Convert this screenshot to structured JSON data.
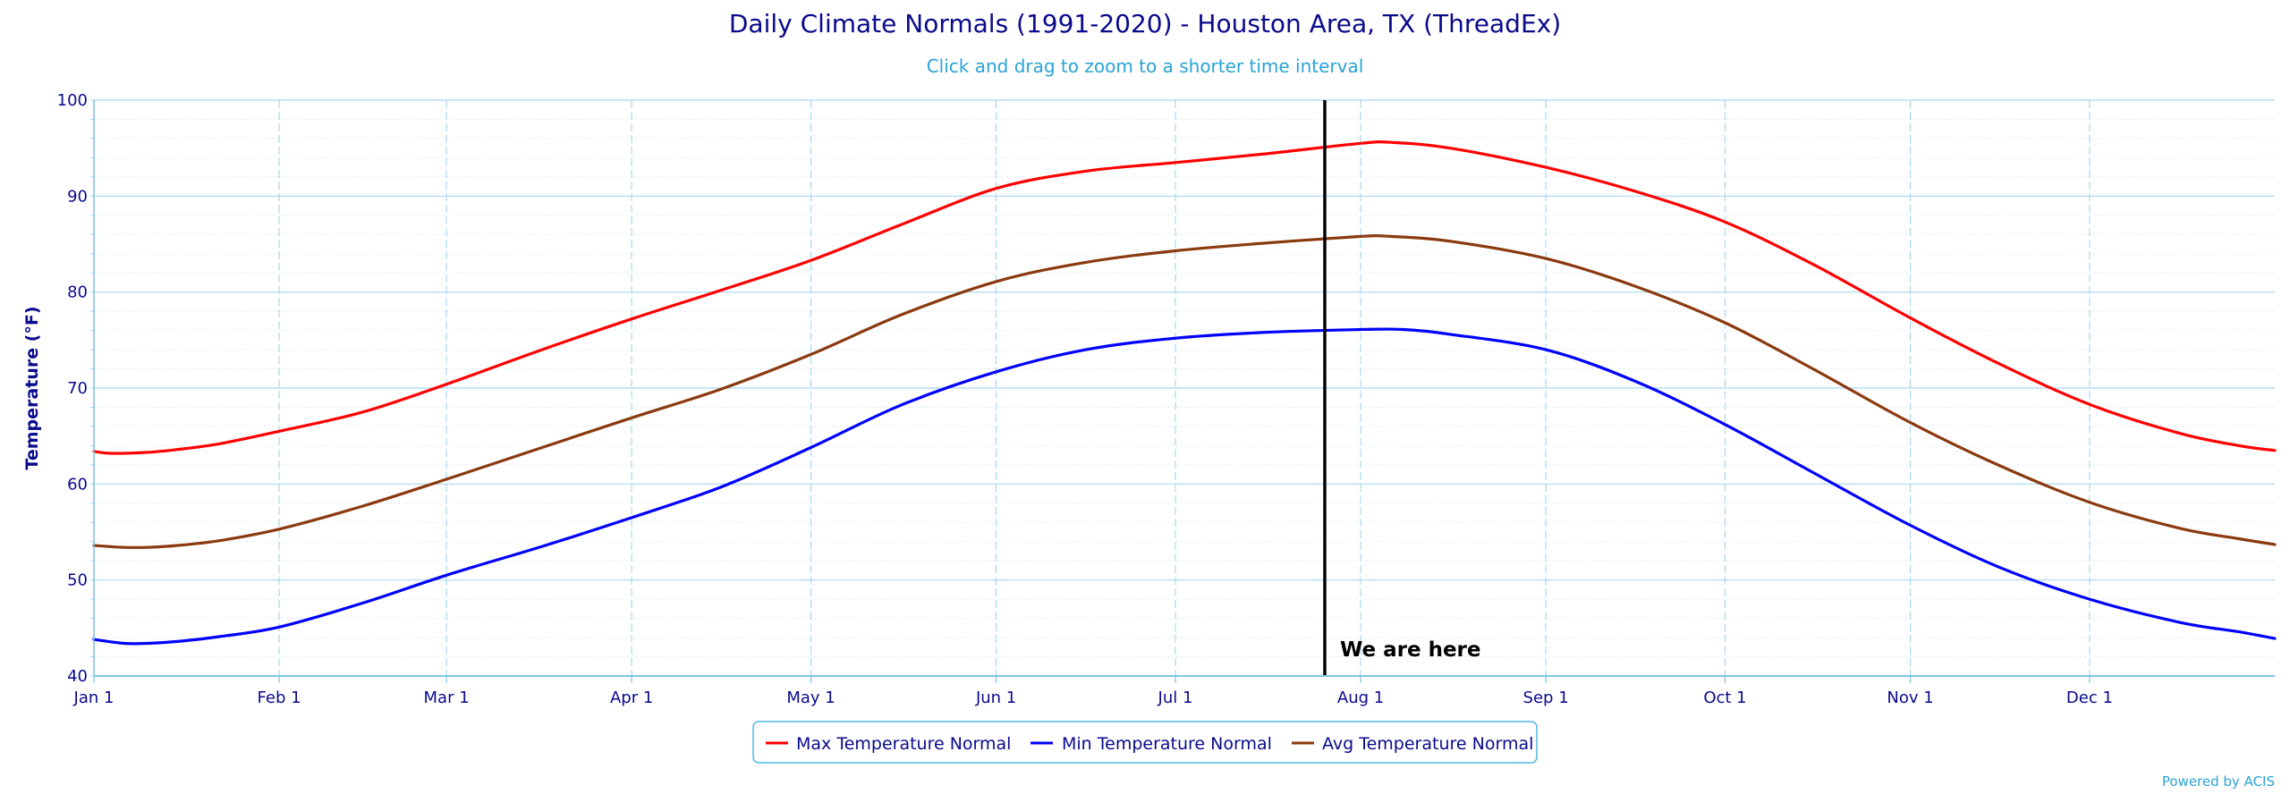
{
  "chart_data": {
    "type": "line",
    "title": "Daily Climate Normals (1991-2020) - Houston Area, TX (ThreadEx)",
    "subtitle": "Click and drag to zoom to a shorter time interval",
    "ylabel": "Temperature (°F)",
    "xlabel": "",
    "ylim": [
      40,
      100
    ],
    "y_ticks": [
      40,
      50,
      60,
      70,
      80,
      90,
      100
    ],
    "x_tick_labels": [
      "Jan 1",
      "Feb 1",
      "Mar 1",
      "Apr 1",
      "May 1",
      "Jun 1",
      "Jul 1",
      "Aug 1",
      "Sep 1",
      "Oct 1",
      "Nov 1",
      "Dec 1"
    ],
    "x_tick_days": [
      1,
      32,
      60,
      91,
      121,
      152,
      182,
      213,
      244,
      274,
      305,
      335
    ],
    "x_range_days": [
      1,
      366
    ],
    "grid": true,
    "legend_position": "bottom-center",
    "series": [
      {
        "name": "Max Temperature Normal",
        "color": "#ff0000",
        "x": [
          1,
          4,
          10,
          15,
          22,
          32,
          46,
          60,
          76,
          91,
          106,
          121,
          136,
          152,
          167,
          182,
          197,
          213,
          218,
          228,
          244,
          259,
          274,
          289,
          305,
          320,
          335,
          350,
          360,
          366
        ],
        "values": [
          63.4,
          63.2,
          63.3,
          63.6,
          64.2,
          65.5,
          67.5,
          70.4,
          74.0,
          77.2,
          80.2,
          83.3,
          87.0,
          90.8,
          92.6,
          93.5,
          94.4,
          95.5,
          95.6,
          95.0,
          93.0,
          90.5,
          87.3,
          82.8,
          77.3,
          72.5,
          68.3,
          65.3,
          64.0,
          63.5
        ]
      },
      {
        "name": "Min Temperature Normal",
        "color": "#0000ff",
        "x": [
          1,
          6,
          10,
          15,
          22,
          32,
          46,
          60,
          76,
          91,
          106,
          121,
          136,
          152,
          167,
          182,
          197,
          213,
          220,
          228,
          244,
          259,
          274,
          289,
          305,
          320,
          335,
          350,
          360,
          366
        ],
        "values": [
          43.8,
          43.4,
          43.4,
          43.6,
          44.1,
          45.1,
          47.6,
          50.5,
          53.5,
          56.5,
          59.7,
          63.8,
          68.2,
          71.7,
          74.0,
          75.2,
          75.8,
          76.1,
          76.1,
          75.6,
          74.0,
          70.7,
          66.2,
          61.1,
          55.7,
          51.3,
          48.0,
          45.6,
          44.6,
          43.9
        ]
      },
      {
        "name": "Avg Temperature Normal",
        "color": "#8b3a0f",
        "x": [
          1,
          6,
          10,
          15,
          22,
          32,
          46,
          60,
          76,
          91,
          106,
          121,
          136,
          152,
          167,
          182,
          197,
          213,
          218,
          228,
          244,
          259,
          274,
          289,
          305,
          320,
          335,
          350,
          360,
          366
        ],
        "values": [
          53.6,
          53.4,
          53.4,
          53.6,
          54.1,
          55.3,
          57.7,
          60.5,
          63.8,
          66.9,
          69.9,
          73.5,
          77.6,
          81.1,
          83.1,
          84.3,
          85.1,
          85.8,
          85.8,
          85.3,
          83.5,
          80.6,
          76.8,
          71.9,
          66.4,
          61.9,
          58.1,
          55.4,
          54.3,
          53.7
        ]
      }
    ],
    "annotations": [
      {
        "type": "vertical-line",
        "x_day": 207,
        "label": "We are here",
        "color": "#000000"
      }
    ]
  },
  "legend": {
    "items": [
      "Max Temperature Normal",
      "Min Temperature Normal",
      "Avg Temperature Normal"
    ]
  },
  "credit": "Powered by ACIS"
}
